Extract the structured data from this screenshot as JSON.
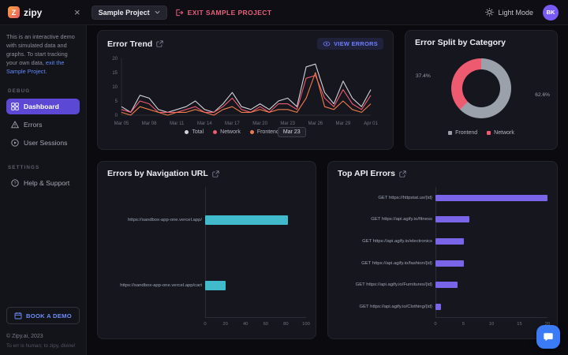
{
  "header": {
    "logo_letter": "Z",
    "brand": "zipy",
    "project_selector": "Sample Project",
    "exit_button": "EXIT SAMPLE PROJECT",
    "light_mode_label": "Light Mode",
    "avatar_initials": "BK"
  },
  "sidebar": {
    "info_text": "This is an interactive demo with simulated data and graphs. To start tracking your own data,",
    "info_link": "exit the Sample Project",
    "info_suffix": ".",
    "sections": [
      {
        "label": "DEBUG",
        "items": [
          {
            "label": "Dashboard"
          },
          {
            "label": "Errors"
          },
          {
            "label": "User Sessions"
          }
        ]
      },
      {
        "label": "SETTINGS",
        "items": [
          {
            "label": "Help & Support"
          }
        ]
      }
    ],
    "book_demo": "BOOK A DEMO",
    "copyright": "© Zipy.ai, 2023",
    "tagline": "To err is human; to zipy, divine!"
  },
  "actions": {
    "view_errors": "VIEW ERRORS"
  },
  "chart_data": [
    {
      "id": "error_trend",
      "type": "line",
      "title": "Error Trend",
      "tooltip": "Mar 23",
      "x": [
        "Mar 05",
        "Mar 08",
        "Mar 11",
        "Mar 14",
        "Mar 17",
        "Mar 20",
        "Mar 23",
        "Mar 26",
        "Mar 29",
        "Apr 01"
      ],
      "ylim": [
        0,
        20
      ],
      "yticks": [
        0,
        5,
        10,
        15,
        20
      ],
      "legend_position": "bottom",
      "series": [
        {
          "name": "Total",
          "color": "#d2d3da",
          "values": [
            3,
            1,
            7,
            6,
            2,
            1,
            2,
            3,
            5,
            2,
            1,
            4,
            8,
            3,
            2,
            4,
            2,
            5,
            6,
            3,
            17,
            18,
            8,
            4,
            12,
            6,
            3,
            9
          ]
        },
        {
          "name": "Network",
          "color": "#ee5a70",
          "values": [
            2,
            1,
            5,
            4,
            1,
            1,
            1,
            2,
            3,
            1,
            1,
            3,
            6,
            2,
            1,
            3,
            1,
            4,
            4,
            2,
            13,
            14,
            6,
            3,
            9,
            4,
            2,
            7
          ]
        },
        {
          "name": "Frontend",
          "color": "#ef7d49",
          "values": [
            1,
            0,
            3,
            2,
            1,
            0,
            1,
            1,
            2,
            1,
            0,
            2,
            3,
            1,
            1,
            2,
            1,
            2,
            2,
            1,
            6,
            15,
            3,
            2,
            5,
            2,
            1,
            4
          ]
        }
      ]
    },
    {
      "id": "error_split",
      "type": "pie",
      "title": "Error Split by Category",
      "labels": [
        "Frontend",
        "Network"
      ],
      "values": [
        62.6,
        37.4
      ],
      "colors": [
        "#9ba1ab",
        "#ee5a70"
      ],
      "donut": true,
      "legend_position": "bottom"
    },
    {
      "id": "nav_errors",
      "type": "bar",
      "orientation": "horizontal",
      "title": "Errors by Navigation URL",
      "categories": [
        "https://sandbox-app-one.vercel.app/",
        "https://sandbox-app-one.vercel.app/cart"
      ],
      "values": [
        82,
        20
      ],
      "xlim": [
        0,
        100
      ],
      "xticks": [
        0,
        20,
        40,
        60,
        80,
        100
      ],
      "color": "#41bacb"
    },
    {
      "id": "api_errors",
      "type": "bar",
      "orientation": "horizontal",
      "title": "Top API Errors",
      "categories": [
        "GET https://httpstat.us/{id}",
        "GET https://api.agify.io/fitness",
        "GET https://api.agify.io/electronics",
        "GET https://api.agify.io/fashion/{id}",
        "GET https://api.agify.io/Furnitures/{id}",
        "GET https://api.agify.io/Clothing/{id}"
      ],
      "values": [
        20,
        6,
        5,
        5,
        4,
        1
      ],
      "xlim": [
        0,
        20
      ],
      "xticks": [
        0,
        5,
        10,
        15,
        20
      ],
      "color": "#7a65e8"
    }
  ]
}
